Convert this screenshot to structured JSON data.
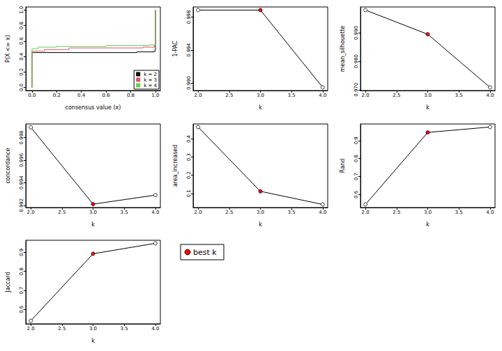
{
  "chart_data": [
    {
      "type": "line",
      "line_style": "step",
      "x_label": "consensus value (x)",
      "y_label": "P(X <= x)",
      "xlim": [
        -0.05,
        1.04
      ],
      "xticks": [
        {
          "value": 0,
          "label": "0.0"
        },
        {
          "value": 0.2,
          "label": "0.2"
        },
        {
          "value": 0.4,
          "label": "0.4"
        },
        {
          "value": 0.6,
          "label": "0.6"
        },
        {
          "value": 0.8,
          "label": "0.8"
        },
        {
          "value": 1,
          "label": "1.0"
        }
      ],
      "ylim": [
        -0.04,
        1.04
      ],
      "yticks": [
        {
          "value": 0,
          "label": "0.0"
        },
        {
          "value": 0.2,
          "label": "0.2"
        },
        {
          "value": 0.4,
          "label": "0.4"
        },
        {
          "value": 0.6,
          "label": "0.6"
        },
        {
          "value": 0.8,
          "label": "0.8"
        },
        {
          "value": 1,
          "label": "1.0"
        }
      ],
      "legend": "bottom right",
      "series": [
        {
          "name": "k = 2",
          "color": "#000000",
          "x": [
            0,
            0,
            0.85,
            0.99,
            1
          ],
          "values": [
            0,
            0.45,
            0.46,
            0.47,
            1
          ]
        },
        {
          "name": "k = 3",
          "color": "#df536b",
          "x": [
            0,
            0,
            0.1,
            0.3,
            0.9,
            0.99,
            1
          ],
          "values": [
            0,
            0.47,
            0.49,
            0.51,
            0.52,
            0.54,
            1
          ]
        },
        {
          "name": "k = 4",
          "color": "#61d04f",
          "x": [
            0,
            0,
            0.05,
            0.2,
            0.6,
            0.95,
            1
          ],
          "values": [
            0,
            0.5,
            0.52,
            0.53,
            0.54,
            0.55,
            1
          ]
        }
      ]
    },
    {
      "type": "line",
      "marker": "circle",
      "x_label": "k",
      "y_label": "1-PAC",
      "color": "#000000",
      "x": [
        2,
        3,
        4
      ],
      "values": [
        0.99885,
        0.99885,
        0.98945
      ],
      "colors": [
        "#ffffff",
        "#ff0000",
        "#ffffff"
      ],
      "xlim": [
        1.92,
        4.08
      ],
      "xticks": [
        {
          "value": 2,
          "label": "2.0"
        },
        {
          "value": 2.5,
          "label": "2.5"
        },
        {
          "value": 3,
          "label": "3.0"
        },
        {
          "value": 3.5,
          "label": "3.5"
        },
        {
          "value": 4,
          "label": "4.0"
        }
      ],
      "ylim": [
        0.98907,
        0.99923
      ],
      "yticks": [
        {
          "value": 0.99,
          "label": "0.990"
        },
        {
          "value": 0.994,
          "label": "0.994"
        },
        {
          "value": 0.998,
          "label": "0.998"
        }
      ]
    },
    {
      "type": "line",
      "marker": "circle",
      "x_label": "k",
      "y_label": "mean_silhouette",
      "color": "#000000",
      "x": [
        2,
        3,
        4
      ],
      "values": [
        0.998,
        0.9895,
        0.9708
      ],
      "colors": [
        "#ffffff",
        "#ff0000",
        "#ffffff"
      ],
      "xlim": [
        1.92,
        4.08
      ],
      "xticks": [
        {
          "value": 2,
          "label": "2.0"
        },
        {
          "value": 2.5,
          "label": "2.5"
        },
        {
          "value": 3,
          "label": "3.0"
        },
        {
          "value": 3.5,
          "label": "3.5"
        },
        {
          "value": 4,
          "label": "4.0"
        }
      ],
      "ylim": [
        0.9697,
        0.9991
      ],
      "yticks": [
        {
          "value": 0.97,
          "label": "0.970"
        },
        {
          "value": 0.98,
          "label": "0.980"
        },
        {
          "value": 0.99,
          "label": "0.990"
        }
      ]
    },
    {
      "type": "line",
      "marker": "circle",
      "x_label": "k",
      "y_label": "concordance",
      "color": "#000000",
      "x": [
        2,
        3,
        4
      ],
      "values": [
        0.9989,
        0.9921,
        0.9929
      ],
      "colors": [
        "#ffffff",
        "#ff0000",
        "#ffffff"
      ],
      "xlim": [
        1.92,
        4.08
      ],
      "xticks": [
        {
          "value": 2,
          "label": "2.0"
        },
        {
          "value": 2.5,
          "label": "2.5"
        },
        {
          "value": 3,
          "label": "3.0"
        },
        {
          "value": 3.5,
          "label": "3.5"
        },
        {
          "value": 4,
          "label": "4.0"
        }
      ],
      "ylim": [
        0.9918,
        0.9992
      ],
      "yticks": [
        0.992,
        0.994,
        0.996,
        0.998
      ]
    },
    {
      "type": "line",
      "marker": "circle",
      "x_label": "k",
      "y_label": "area_increased",
      "color": "#000000",
      "x": [
        2,
        3,
        4
      ],
      "values": [
        0.465,
        0.112,
        0.04
      ],
      "colors": [
        "#ffffff",
        "#ff0000",
        "#ffffff"
      ],
      "xlim": [
        1.92,
        4.08
      ],
      "xticks": [
        {
          "value": 2,
          "label": "2.0"
        },
        {
          "value": 2.5,
          "label": "2.5"
        },
        {
          "value": 3,
          "label": "3.0"
        },
        {
          "value": 3.5,
          "label": "3.5"
        },
        {
          "value": 4,
          "label": "4.0"
        }
      ],
      "ylim": [
        0.023,
        0.482
      ],
      "yticks": [
        0.1,
        0.2,
        0.3,
        0.4
      ]
    },
    {
      "type": "line",
      "marker": "circle",
      "x_label": "k",
      "y_label": "Rand",
      "color": "#000000",
      "x": [
        2,
        3,
        4
      ],
      "values": [
        0.545,
        0.945,
        0.975
      ],
      "colors": [
        "#ffffff",
        "#ff0000",
        "#ffffff"
      ],
      "xlim": [
        1.92,
        4.08
      ],
      "xticks": [
        {
          "value": 2,
          "label": "2.0"
        },
        {
          "value": 2.5,
          "label": "2.5"
        },
        {
          "value": 3,
          "label": "3.0"
        },
        {
          "value": 3.5,
          "label": "3.5"
        },
        {
          "value": 4,
          "label": "4.0"
        }
      ],
      "ylim": [
        0.528,
        0.992
      ],
      "yticks": [
        0.6,
        0.7,
        0.8,
        0.9
      ]
    },
    {
      "type": "line",
      "marker": "circle",
      "x_label": "k",
      "y_label": "Jaccard",
      "color": "#000000",
      "x": [
        2,
        3,
        4
      ],
      "values": [
        0.54,
        0.893,
        0.948
      ],
      "colors": [
        "#ffffff",
        "#ff0000",
        "#ffffff"
      ],
      "xlim": [
        1.92,
        4.08
      ],
      "xticks": [
        {
          "value": 2,
          "label": "2.0"
        },
        {
          "value": 2.5,
          "label": "2.5"
        },
        {
          "value": 3,
          "label": "3.0"
        },
        {
          "value": 3.5,
          "label": "3.5"
        },
        {
          "value": 4,
          "label": "4.0"
        }
      ],
      "ylim": [
        0.524,
        0.964
      ],
      "yticks": [
        0.6,
        0.7,
        0.8,
        0.9
      ]
    },
    {
      "type": "legend",
      "series": [
        {
          "name": "best k",
          "color": "#ff0000",
          "marker": "circle"
        }
      ]
    }
  ]
}
